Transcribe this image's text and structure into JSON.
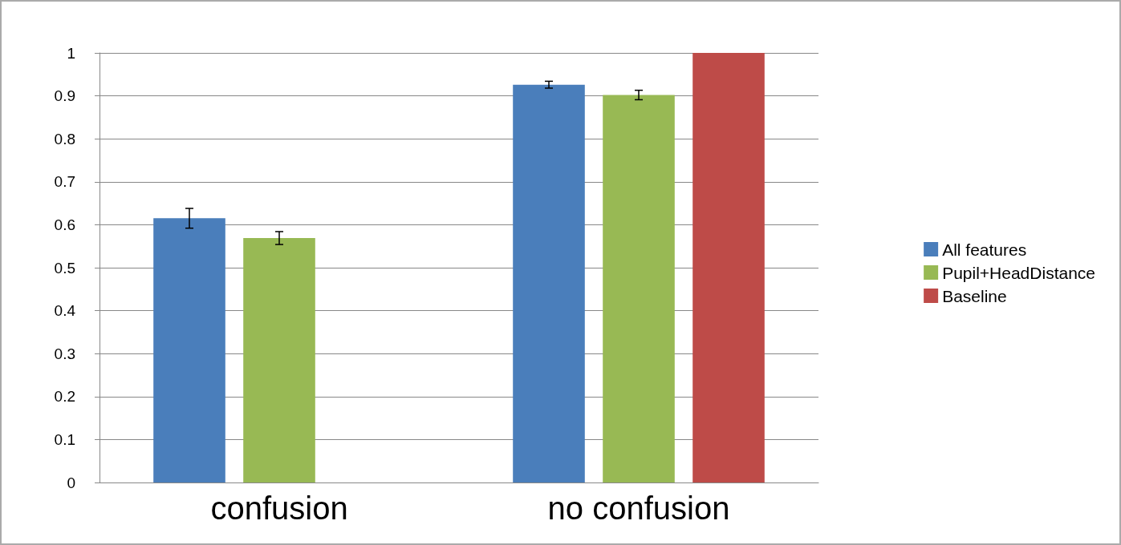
{
  "chart_data": {
    "type": "bar",
    "categories": [
      "confusion",
      "no confusion"
    ],
    "series": [
      {
        "name": "All features",
        "color": "#4a7ebb",
        "values": [
          0.615,
          0.926
        ],
        "errors": [
          0.023,
          0.008
        ]
      },
      {
        "name": "Pupil+HeadDistance",
        "color": "#98b954",
        "values": [
          0.569,
          0.902
        ],
        "errors": [
          0.015,
          0.011
        ]
      },
      {
        "name": "Baseline",
        "color": "#be4b48",
        "values": [
          null,
          1.0
        ],
        "errors": [
          null,
          null
        ]
      }
    ],
    "ylim": [
      0,
      1
    ],
    "yticks": [
      0,
      0.1,
      0.2,
      0.3,
      0.4,
      0.5,
      0.6,
      0.7,
      0.8,
      0.9,
      1
    ],
    "grid": "y",
    "legend": "right"
  }
}
